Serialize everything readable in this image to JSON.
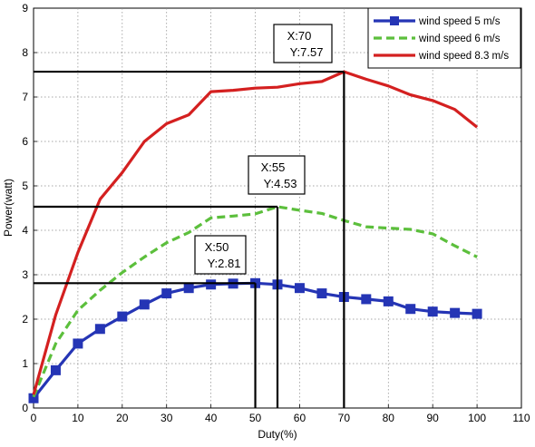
{
  "chart_data": {
    "type": "line",
    "title": "",
    "xlabel": "Duty(%)",
    "ylabel": "Power(watt)",
    "xlim": [
      0,
      110
    ],
    "ylim": [
      0,
      9
    ],
    "x_ticks": [
      "0",
      "10",
      "20",
      "30",
      "40",
      "50",
      "60",
      "70",
      "80",
      "90",
      "100",
      "110"
    ],
    "y_ticks": [
      "0",
      "1",
      "2",
      "3",
      "4",
      "5",
      "6",
      "7",
      "8",
      "9"
    ],
    "grid": true,
    "legend_position": "top-right",
    "series": [
      {
        "name": "wind speed 5 m/s",
        "color": "#2535b5",
        "style": "solid-square-markers",
        "x": [
          0,
          5,
          10,
          15,
          20,
          25,
          30,
          35,
          40,
          45,
          50,
          55,
          60,
          65,
          70,
          75,
          80,
          85,
          90,
          95,
          100
        ],
        "y": [
          0.22,
          0.85,
          1.45,
          1.78,
          2.06,
          2.33,
          2.58,
          2.7,
          2.78,
          2.8,
          2.81,
          2.78,
          2.7,
          2.58,
          2.5,
          2.45,
          2.4,
          2.23,
          2.17,
          2.14,
          2.12
        ]
      },
      {
        "name": "wind speed 6 m/s",
        "color": "#5cbf3c",
        "style": "dashed",
        "x": [
          0,
          5,
          10,
          15,
          20,
          25,
          30,
          35,
          40,
          45,
          50,
          55,
          60,
          65,
          70,
          75,
          80,
          85,
          90,
          95,
          100
        ],
        "y": [
          0.25,
          1.45,
          2.2,
          2.65,
          3.05,
          3.4,
          3.72,
          3.95,
          4.28,
          4.32,
          4.37,
          4.53,
          4.45,
          4.38,
          4.22,
          4.08,
          4.05,
          4.02,
          3.92,
          3.65,
          3.4
        ]
      },
      {
        "name": "wind speed 8.3 m/s",
        "color": "#d42020",
        "style": "solid",
        "x": [
          0,
          5,
          10,
          15,
          20,
          25,
          30,
          35,
          40,
          45,
          50,
          55,
          60,
          65,
          70,
          75,
          80,
          85,
          90,
          95,
          100
        ],
        "y": [
          0.3,
          2.1,
          3.5,
          4.7,
          5.3,
          6.0,
          6.4,
          6.6,
          7.12,
          7.15,
          7.2,
          7.22,
          7.3,
          7.35,
          7.57,
          7.4,
          7.25,
          7.05,
          6.92,
          6.72,
          6.32
        ]
      }
    ],
    "annotations": [
      {
        "line1": "X:70",
        "line2": "Y:7.57",
        "x": 70,
        "y": 7.57
      },
      {
        "line1": "X:55",
        "line2": "Y:4.53",
        "x": 55,
        "y": 4.53
      },
      {
        "line1": "X:50",
        "line2": "Y:2.81",
        "x": 50,
        "y": 2.81
      }
    ]
  }
}
